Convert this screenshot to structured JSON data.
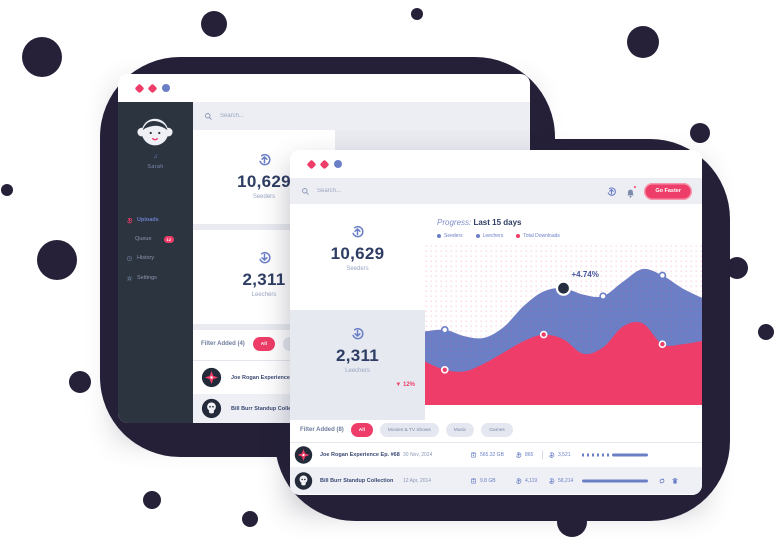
{
  "accent_color": "#ee3d68",
  "blue_color": "#6b7fc7",
  "back_window": {
    "search_placeholder": "Search...",
    "sidebar": {
      "user_name": "Sarah",
      "menu": [
        {
          "label": "Uploads",
          "badge": ""
        },
        {
          "label": "Queue",
          "badge": "12"
        },
        {
          "label": "History",
          "badge": ""
        },
        {
          "label": "Settings",
          "badge": ""
        }
      ]
    },
    "stats": [
      {
        "value": "10,629",
        "label": "Seeders"
      },
      {
        "value": "2,311",
        "label": "Leechers"
      }
    ],
    "filter_label": "Filter Added (4)",
    "pills": [
      {
        "label": "All"
      },
      {
        "label": "Music"
      }
    ],
    "rows": [
      {
        "title": "Joe Rogan Experience Ep. #68"
      },
      {
        "title": "Bill Burr Standup Collection"
      }
    ]
  },
  "front_window": {
    "search_placeholder": "Search...",
    "toolbar_button": "Go Faster",
    "stats": [
      {
        "value": "10,629",
        "label": "Seeders",
        "delta": ""
      },
      {
        "value": "2,311",
        "label": "Leechers",
        "delta": "▼ 12%"
      }
    ],
    "chart_header": {
      "title_prefix": "Progress:",
      "title": "Last 15 days",
      "legend": [
        {
          "label": "Seeders",
          "color": "#6b7fc7"
        },
        {
          "label": "Leechers",
          "color": "#6b7fc7"
        },
        {
          "label": "Total Downloads",
          "color": "#ee3d68"
        }
      ]
    },
    "filter_label": "Filter Added (8)",
    "pills": [
      {
        "label": "All"
      },
      {
        "label": "Movies & TV Shows"
      },
      {
        "label": "Music"
      },
      {
        "label": "Games"
      }
    ],
    "rows": [
      {
        "title": "Joe Rogan Experience Ep. #68",
        "date": "30 Nov, 2024",
        "size": "565.32 GB",
        "up": "865",
        "down": "3,521",
        "progress": 55,
        "progress_style": "partial"
      },
      {
        "title": "Bill Burr Standup Collection",
        "date": "12 Apr, 2014",
        "size": "9.8 GB",
        "up": "4,119",
        "down": "58,214",
        "progress": 100,
        "progress_style": "full"
      }
    ]
  },
  "chart_data": {
    "type": "area",
    "title": "Progress: Last 15 days",
    "categories": [
      "1",
      "2",
      "3",
      "4",
      "5",
      "6",
      "7",
      "8",
      "9",
      "10",
      "11",
      "12",
      "13",
      "14",
      "15"
    ],
    "series": [
      {
        "name": "Seeders",
        "color": "#6b7fc7",
        "values": [
          46,
          47,
          43,
          42,
          49,
          62,
          71,
          73,
          69,
          68,
          77,
          85,
          81,
          73,
          67
        ],
        "markers": [
          1,
          9,
          12
        ]
      },
      {
        "name": "Total Downloads",
        "color": "#ee3d68",
        "values": [
          27,
          22,
          21,
          26,
          33,
          40,
          44,
          41,
          32,
          36,
          49,
          51,
          38,
          38,
          40
        ],
        "markers": [
          1,
          6,
          12
        ]
      }
    ],
    "annotation": {
      "text": "+4.74%",
      "series": "Seeders",
      "index": 7
    },
    "ylim": [
      0,
      100
    ],
    "grid": false,
    "legend_position": "top",
    "x_axis_visible": false,
    "y_axis_visible": false
  }
}
